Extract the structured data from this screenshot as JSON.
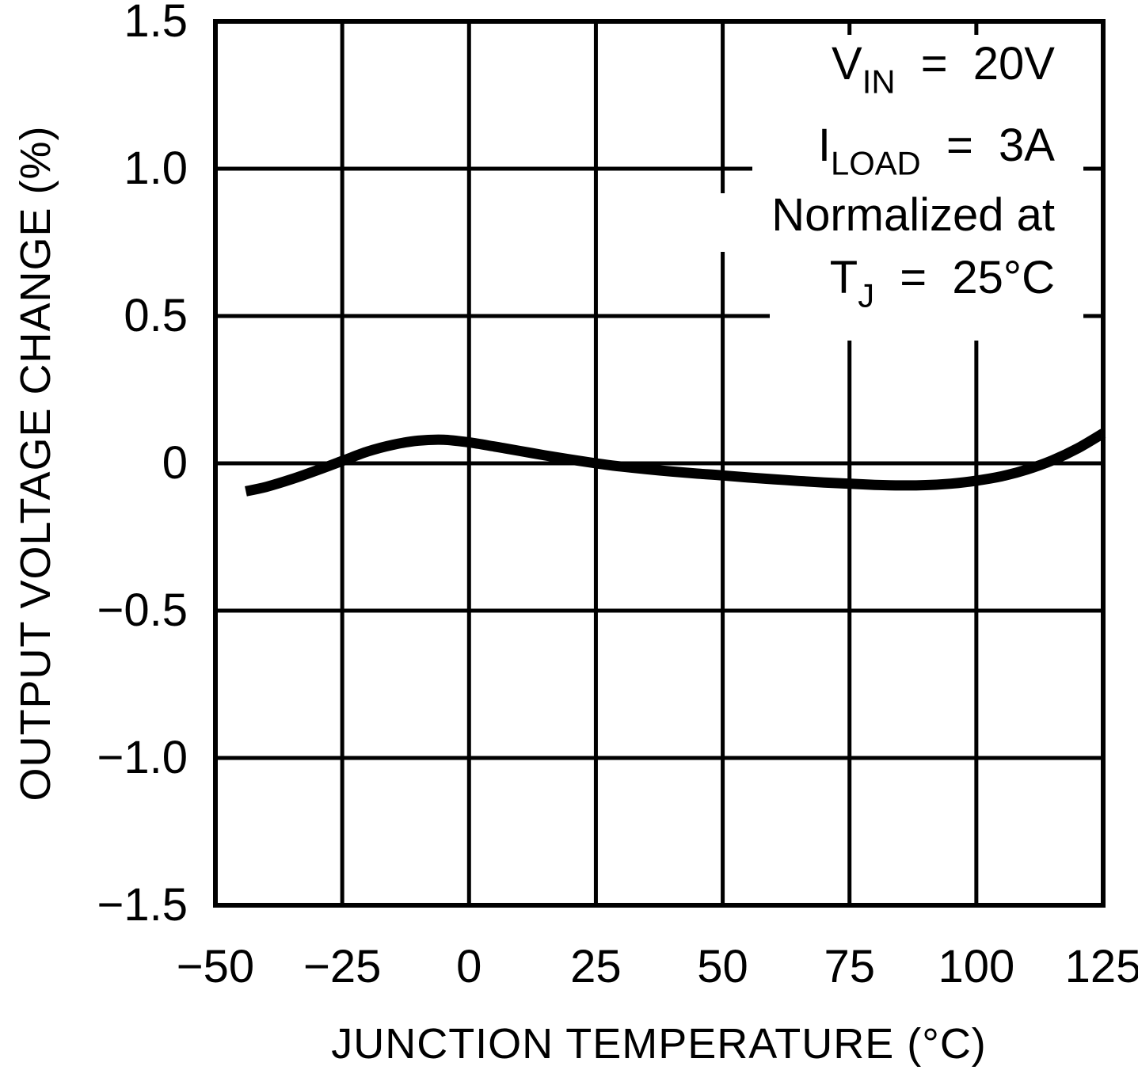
{
  "colors": {
    "background": "#ffffff",
    "line": "#000000",
    "grid": "#000000",
    "text": "#000000"
  },
  "chart_data": {
    "type": "line",
    "title": "",
    "xlabel": "JUNCTION TEMPERATURE (°C)",
    "ylabel": "OUTPUT VOLTAGE CHANGE (%)",
    "xlim": [
      -50,
      125
    ],
    "ylim": [
      -1.5,
      1.5
    ],
    "grid": true,
    "legend": "none",
    "x_ticks": [
      -50,
      -25,
      0,
      25,
      50,
      75,
      100,
      125
    ],
    "x_tick_labels": [
      "−50",
      "−25",
      "0",
      "25",
      "50",
      "75",
      "100",
      "125"
    ],
    "y_ticks": [
      1.5,
      1.0,
      0.5,
      0,
      -0.5,
      -1.0,
      -1.5
    ],
    "y_tick_labels": [
      "1.5",
      "1.0",
      "0.5",
      "0",
      "−0.5",
      "−1.0",
      "−1.5"
    ],
    "series": [
      {
        "name": "output-voltage-change-vs-temperature",
        "x": [
          -44,
          -40,
          -35,
          -30,
          -25,
          -20,
          -15,
          -10,
          -5,
          0,
          5,
          10,
          15,
          20,
          25,
          30,
          35,
          40,
          45,
          50,
          55,
          60,
          65,
          70,
          75,
          80,
          85,
          90,
          95,
          100,
          105,
          110,
          115,
          120,
          125
        ],
        "y": [
          -0.095,
          -0.08,
          -0.054,
          -0.024,
          0.008,
          0.04,
          0.063,
          0.077,
          0.08,
          0.071,
          0.057,
          0.042,
          0.027,
          0.013,
          0.0,
          -0.011,
          -0.02,
          -0.028,
          -0.035,
          -0.041,
          -0.048,
          -0.054,
          -0.06,
          -0.065,
          -0.069,
          -0.073,
          -0.075,
          -0.074,
          -0.069,
          -0.059,
          -0.044,
          -0.021,
          0.01,
          0.051,
          0.102
        ]
      }
    ],
    "annotation": {
      "lines": [
        [
          {
            "t": "V"
          },
          {
            "t": "IN",
            "sub": true
          },
          {
            "t": "  =  20V"
          }
        ],
        [
          {
            "t": "I"
          },
          {
            "t": "LOAD",
            "sub": true
          },
          {
            "t": "  =  3A"
          }
        ],
        [
          {
            "t": "Normalized at"
          }
        ],
        [
          {
            "t": "T"
          },
          {
            "t": "J",
            "sub": true
          },
          {
            "t": "  =  25°C"
          }
        ]
      ]
    }
  }
}
